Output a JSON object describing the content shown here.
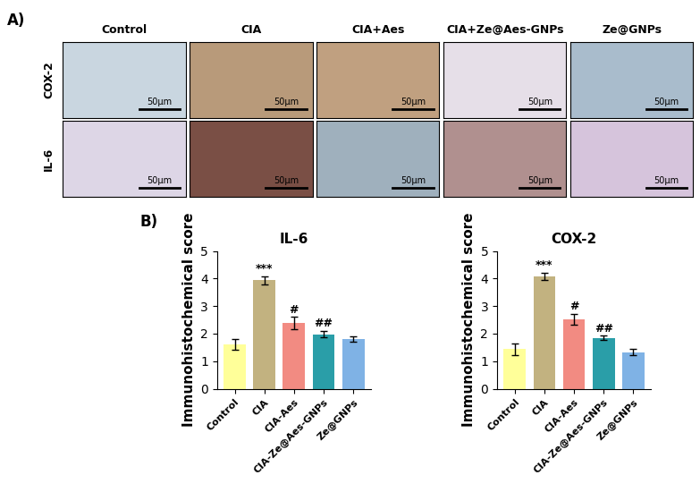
{
  "panel_a": {
    "label": "A)",
    "columns": [
      "Control",
      "CIA",
      "CIA+Aes",
      "CIA+Ze@Aes-GNPs",
      "Ze@GNPs"
    ],
    "rows": [
      "COX-2",
      "IL-6"
    ],
    "scale_bar": "50μm"
  },
  "panel_b": {
    "label": "B)"
  },
  "chart_data": [
    {
      "type": "bar",
      "title": "IL-6",
      "y_label": "Immunohistochemical score",
      "categories": [
        "Control",
        "CIA",
        "CIA-Aes",
        "CIA-Ze@Aes-GNPs",
        "Ze@GNPs"
      ],
      "values": [
        1.6,
        3.93,
        2.38,
        1.98,
        1.8
      ],
      "errors": [
        0.2,
        0.15,
        0.22,
        0.12,
        0.1
      ],
      "colors": [
        "#ffff99",
        "#c2b280",
        "#f28b82",
        "#2a9ea8",
        "#7fb2e5"
      ],
      "annotations": [
        {
          "category": "CIA",
          "text": "***"
        },
        {
          "category": "CIA-Aes",
          "text": "#"
        },
        {
          "category": "CIA-Ze@Aes-GNPs",
          "text": "##"
        }
      ],
      "ylim": [
        0,
        5
      ],
      "yticks": [
        0,
        1,
        2,
        3,
        4,
        5
      ]
    },
    {
      "type": "bar",
      "title": "COX-2",
      "y_label": "Immunohistochemical score",
      "categories": [
        "Control",
        "CIA",
        "CIA-Aes",
        "CIA-Ze@Aes-GNPs",
        "Ze@GNPs"
      ],
      "values": [
        1.43,
        4.08,
        2.52,
        1.85,
        1.33
      ],
      "errors": [
        0.2,
        0.13,
        0.2,
        0.08,
        0.1
      ],
      "colors": [
        "#ffff99",
        "#c2b280",
        "#f28b82",
        "#2a9ea8",
        "#7fb2e5"
      ],
      "annotations": [
        {
          "category": "CIA",
          "text": "***"
        },
        {
          "category": "CIA-Aes",
          "text": "#"
        },
        {
          "category": "CIA-Ze@Aes-GNPs",
          "text": "##"
        }
      ],
      "ylim": [
        0,
        5
      ],
      "yticks": [
        0,
        1,
        2,
        3,
        4,
        5
      ]
    }
  ]
}
